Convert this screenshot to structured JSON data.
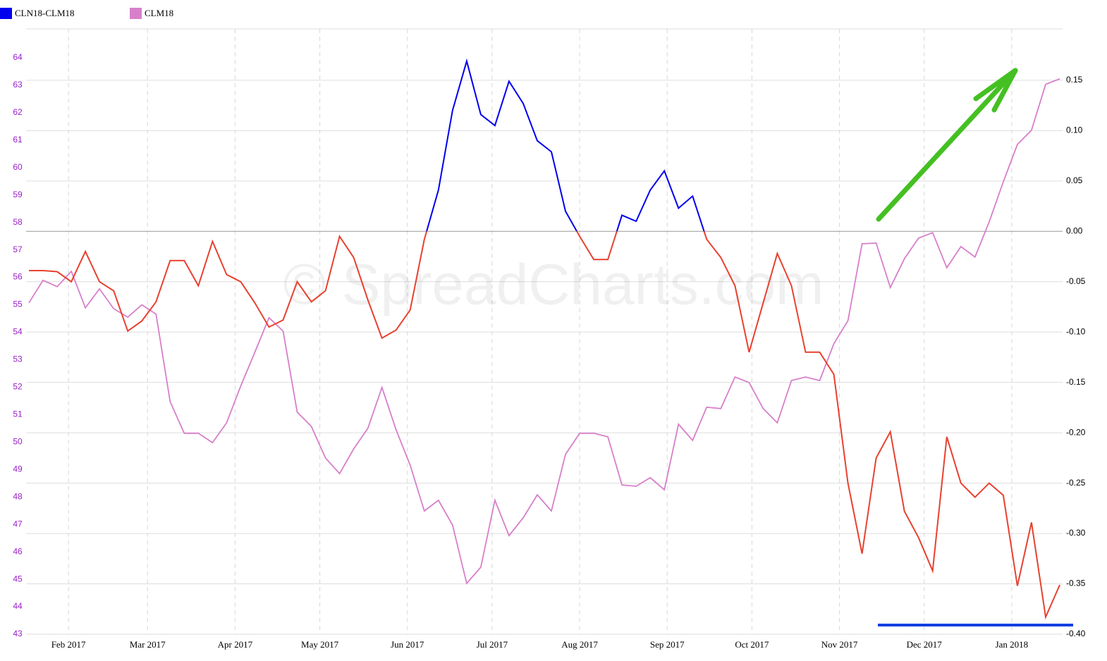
{
  "chart_data": {
    "type": "line",
    "watermark": "© SpreadCharts.com",
    "legend": "top-left",
    "grid": true,
    "zero_line": true,
    "x": [
      "2017-01-18",
      "2017-01-23",
      "2017-01-28",
      "2017-02-02",
      "2017-02-07",
      "2017-02-12",
      "2017-02-17",
      "2017-02-22",
      "2017-02-27",
      "2017-03-04",
      "2017-03-09",
      "2017-03-14",
      "2017-03-19",
      "2017-03-24",
      "2017-03-29",
      "2017-04-03",
      "2017-04-08",
      "2017-04-13",
      "2017-04-18",
      "2017-04-23",
      "2017-04-28",
      "2017-05-03",
      "2017-05-08",
      "2017-05-13",
      "2017-05-18",
      "2017-05-23",
      "2017-05-28",
      "2017-06-02",
      "2017-06-07",
      "2017-06-12",
      "2017-06-17",
      "2017-06-22",
      "2017-06-27",
      "2017-07-02",
      "2017-07-07",
      "2017-07-12",
      "2017-07-17",
      "2017-07-22",
      "2017-07-27",
      "2017-08-01",
      "2017-08-06",
      "2017-08-11",
      "2017-08-16",
      "2017-08-21",
      "2017-08-26",
      "2017-08-31",
      "2017-09-05",
      "2017-09-10",
      "2017-09-15",
      "2017-09-20",
      "2017-09-25",
      "2017-09-30",
      "2017-10-05",
      "2017-10-10",
      "2017-10-15",
      "2017-10-20",
      "2017-10-25",
      "2017-10-30",
      "2017-11-04",
      "2017-11-09",
      "2017-11-14",
      "2017-11-19",
      "2017-11-24",
      "2017-11-29",
      "2017-12-04",
      "2017-12-09",
      "2017-12-14",
      "2017-12-19",
      "2017-12-24",
      "2017-12-29",
      "2018-01-03",
      "2018-01-08",
      "2018-01-13",
      "2018-01-18"
    ],
    "series": [
      {
        "name": "CLN18-CLM18",
        "color": "#0000ee",
        "negative_color": "#e8412f",
        "axis": "y2",
        "values": [
          -0.039,
          -0.039,
          -0.04,
          -0.05,
          -0.02,
          -0.05,
          -0.059,
          -0.099,
          -0.089,
          -0.07,
          -0.029,
          -0.029,
          -0.054,
          -0.01,
          -0.043,
          -0.05,
          -0.071,
          -0.095,
          -0.088,
          -0.05,
          -0.07,
          -0.059,
          -0.005,
          -0.026,
          -0.068,
          -0.106,
          -0.098,
          -0.078,
          -0.008,
          0.041,
          0.12,
          0.169,
          0.116,
          0.105,
          0.149,
          0.127,
          0.09,
          0.079,
          0.02,
          -0.005,
          -0.028,
          -0.028,
          0.016,
          0.01,
          0.041,
          0.06,
          0.023,
          0.035,
          -0.008,
          -0.026,
          -0.054,
          -0.12,
          -0.071,
          -0.022,
          -0.054,
          -0.12,
          -0.12,
          -0.142,
          -0.25,
          -0.32,
          -0.225,
          -0.199,
          -0.278,
          -0.304,
          -0.337,
          -0.204,
          -0.25,
          -0.264,
          -0.25,
          -0.262,
          -0.352,
          -0.289,
          -0.383,
          -0.351
        ]
      },
      {
        "name": "CLM18",
        "color": "#d77fcb",
        "values": [
          55.07,
          55.89,
          55.66,
          56.22,
          54.89,
          55.58,
          54.86,
          54.55,
          55.0,
          54.66,
          51.47,
          50.32,
          50.32,
          49.98,
          50.7,
          52.04,
          53.27,
          54.53,
          54.04,
          51.09,
          50.57,
          49.42,
          48.85,
          49.75,
          50.5,
          51.99,
          50.45,
          49.16,
          47.49,
          47.88,
          46.98,
          44.85,
          45.44,
          47.88,
          46.59,
          47.24,
          48.08,
          47.49,
          49.55,
          50.32,
          50.32,
          50.19,
          48.44,
          48.39,
          48.7,
          48.26,
          50.65,
          50.06,
          51.27,
          51.22,
          52.37,
          52.17,
          51.22,
          50.7,
          52.24,
          52.37,
          52.24,
          53.58,
          54.42,
          57.22,
          57.25,
          55.63,
          56.68,
          57.43,
          57.63,
          56.35,
          57.12,
          56.74,
          58.02,
          59.48,
          60.84,
          61.36,
          63.03,
          63.23
        ]
      }
    ],
    "xlim": [
      "2017-01-17",
      "2018-01-19"
    ],
    "xticks": [
      {
        "value": "2017-02-01",
        "label": "Feb 2017"
      },
      {
        "value": "2017-03-01",
        "label": "Mar 2017"
      },
      {
        "value": "2017-04-01",
        "label": "Apr 2017"
      },
      {
        "value": "2017-05-01",
        "label": "May 2017"
      },
      {
        "value": "2017-06-01",
        "label": "Jun 2017"
      },
      {
        "value": "2017-07-01",
        "label": "Jul 2017"
      },
      {
        "value": "2017-08-01",
        "label": "Aug 2017"
      },
      {
        "value": "2017-09-01",
        "label": "Sep 2017"
      },
      {
        "value": "2017-10-01",
        "label": "Oct 2017"
      },
      {
        "value": "2017-11-01",
        "label": "Nov 2017"
      },
      {
        "value": "2017-12-01",
        "label": "Dec 2017"
      },
      {
        "value": "2018-01-01",
        "label": "Jan 2018"
      }
    ],
    "ylim": [
      43,
      65.05
    ],
    "yticks": [
      43,
      44,
      45,
      46,
      47,
      48,
      49,
      50,
      51,
      52,
      53,
      54,
      55,
      56,
      57,
      58,
      59,
      60,
      61,
      62,
      63,
      64
    ],
    "y2lim": [
      -0.4,
      0.201
    ],
    "y2ticks": [
      {
        "value": -0.4,
        "label": "-0.40"
      },
      {
        "value": -0.35,
        "label": "-0.35"
      },
      {
        "value": -0.3,
        "label": "-0.30"
      },
      {
        "value": -0.25,
        "label": "-0.25"
      },
      {
        "value": -0.2,
        "label": "-0.20"
      },
      {
        "value": -0.15,
        "label": "-0.15"
      },
      {
        "value": -0.1,
        "label": "-0.10"
      },
      {
        "value": -0.05,
        "label": "-0.05"
      },
      {
        "value": 0,
        "label": "0.00"
      },
      {
        "value": 0.05,
        "label": "0.05"
      },
      {
        "value": 0.1,
        "label": "0.10"
      },
      {
        "value": 0.15,
        "label": "0.15"
      }
    ]
  }
}
